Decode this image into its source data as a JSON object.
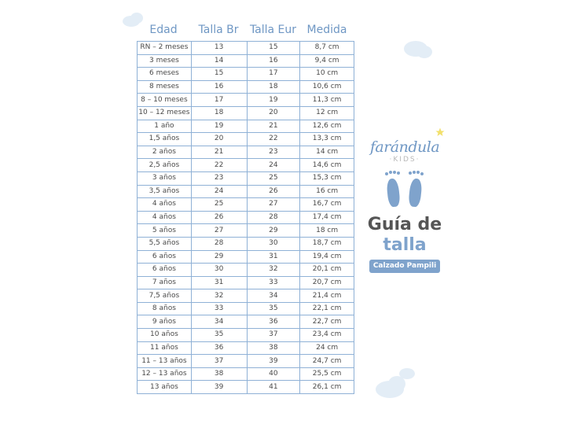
{
  "columns": [
    "Edad",
    "Talla Br",
    "Talla Eur",
    "Medida"
  ],
  "rows": [
    [
      "RN – 2 meses",
      "13",
      "15",
      "8,7 cm"
    ],
    [
      "3 meses",
      "14",
      "16",
      "9,4 cm"
    ],
    [
      "6 meses",
      "15",
      "17",
      "10 cm"
    ],
    [
      "8 meses",
      "16",
      "18",
      "10,6 cm"
    ],
    [
      "8 – 10 meses",
      "17",
      "19",
      "11,3 cm"
    ],
    [
      "10 – 12 meses",
      "18",
      "20",
      "12 cm"
    ],
    [
      "1 año",
      "19",
      "21",
      "12,6 cm"
    ],
    [
      "1,5 años",
      "20",
      "22",
      "13,3 cm"
    ],
    [
      "2 años",
      "21",
      "23",
      "14 cm"
    ],
    [
      "2,5 años",
      "22",
      "24",
      "14,6 cm"
    ],
    [
      "3 años",
      "23",
      "25",
      "15,3 cm"
    ],
    [
      "3,5 años",
      "24",
      "26",
      "16 cm"
    ],
    [
      "4 años",
      "25",
      "27",
      "16,7 cm"
    ],
    [
      "4 años",
      "26",
      "28",
      "17,4 cm"
    ],
    [
      "5 años",
      "27",
      "29",
      "18 cm"
    ],
    [
      "5,5 años",
      "28",
      "30",
      "18,7 cm"
    ],
    [
      "6 años",
      "29",
      "31",
      "19,4 cm"
    ],
    [
      "6 años",
      "30",
      "32",
      "20,1 cm"
    ],
    [
      "7 años",
      "31",
      "33",
      "20,7 cm"
    ],
    [
      "7,5 años",
      "32",
      "34",
      "21,4 cm"
    ],
    [
      "8 años",
      "33",
      "35",
      "22,1 cm"
    ],
    [
      "9 años",
      "34",
      "36",
      "22,7 cm"
    ],
    [
      "10 años",
      "35",
      "37",
      "23,4 cm"
    ],
    [
      "11 años",
      "36",
      "38",
      "24 cm"
    ],
    [
      "11 – 13 años",
      "37",
      "39",
      "24,7 cm"
    ],
    [
      "12 – 13 años",
      "38",
      "40",
      "25,5 cm"
    ],
    [
      "13 años",
      "39",
      "41",
      "26,1 cm"
    ]
  ],
  "brand": {
    "logo": "farándula",
    "logo_sub": "·KIDS·",
    "title_line1": "Guía de",
    "title_line2": "talla",
    "badge": "Calzado Pampili"
  },
  "colors": {
    "accent": "#7fa3cc",
    "header_text": "#6f97c4",
    "table_border": "#8fb1d6"
  },
  "icons": [
    "cloud-icon",
    "footprints-icon",
    "star-icon"
  ]
}
